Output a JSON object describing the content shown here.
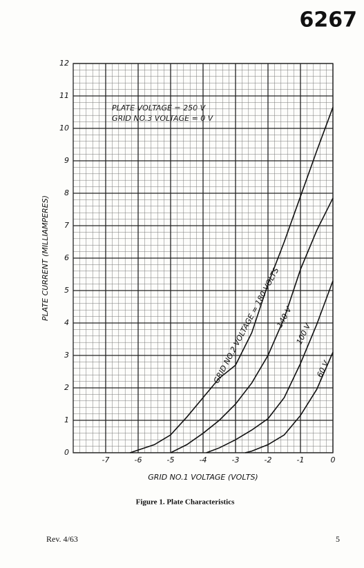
{
  "header": "6267",
  "footer": {
    "revision": "Rev. 4/63",
    "page_number": "5"
  },
  "chart_data": {
    "type": "line",
    "caption": "Figure 1.  Plate Characteristics",
    "x_label": "GRID NO.1 VOLTAGE (VOLTS)",
    "y_label": "PLATE CURRENT (MILLIAMPERES)",
    "annotations": [
      "PLATE VOLTAGE = 250 V",
      "GRID NO.3 VOLTAGE = 0 V"
    ],
    "xlim": [
      -8,
      0
    ],
    "xticks": [
      -7,
      -6,
      -5,
      -4,
      -3,
      -2,
      -1,
      0
    ],
    "ylim": [
      0,
      12
    ],
    "yticks": [
      0,
      1,
      2,
      3,
      4,
      5,
      6,
      7,
      8,
      9,
      10,
      11,
      12
    ],
    "grid": true,
    "series": [
      {
        "name": "GRID NO.2 VOLTAGE = 180 VOLTS",
        "color": "#111111",
        "x": [
          -6.25,
          -5.5,
          -5,
          -4.5,
          -4,
          -3.5,
          -3,
          -2.5,
          -2,
          -1.5,
          -1,
          -0.5,
          0
        ],
        "values": [
          0,
          0.25,
          0.55,
          1.1,
          1.7,
          2.3,
          2.7,
          3.7,
          5.2,
          6.5,
          7.9,
          9.3,
          10.65
        ]
      },
      {
        "name": "140 V",
        "color": "#111111",
        "x": [
          -5,
          -4.5,
          -4,
          -3.5,
          -3,
          -2.5,
          -2,
          -1.5,
          -1,
          -0.5,
          0
        ],
        "values": [
          0,
          0.25,
          0.6,
          1.0,
          1.5,
          2.15,
          3.0,
          4.15,
          5.65,
          6.85,
          7.85
        ]
      },
      {
        "name": "100 V",
        "color": "#111111",
        "x": [
          -3.9,
          -3.5,
          -3,
          -2.5,
          -2,
          -1.5,
          -1,
          -0.5,
          0
        ],
        "values": [
          0,
          0.15,
          0.4,
          0.7,
          1.05,
          1.7,
          2.75,
          3.95,
          5.3
        ]
      },
      {
        "name": "60 V",
        "color": "#111111",
        "x": [
          -2.7,
          -2.5,
          -2,
          -1.5,
          -1,
          -0.5,
          0
        ],
        "values": [
          0,
          0.05,
          0.25,
          0.55,
          1.15,
          1.95,
          3.1
        ]
      }
    ]
  }
}
